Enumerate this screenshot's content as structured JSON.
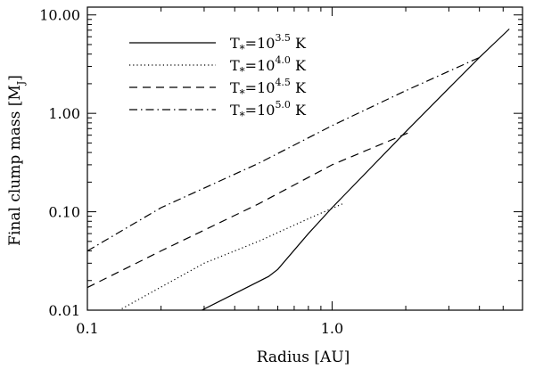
{
  "chart_data": {
    "type": "line",
    "title": "",
    "xlabel": "Radius [AU]",
    "ylabel": "Final clump mass [M",
    "ylabel_sub": "J",
    "ylabel_end": "]",
    "xscale": "log",
    "yscale": "log",
    "xlim": [
      0.1,
      6.0
    ],
    "ylim": [
      0.01,
      12.0
    ],
    "xticks": [
      0.1,
      1.0
    ],
    "xtick_labels": [
      "0.1",
      "1.0"
    ],
    "yticks": [
      0.01,
      0.1,
      1.0,
      10.0
    ],
    "ytick_labels": [
      "0.01",
      "0.10",
      "1.00",
      "10.00"
    ],
    "grid": false,
    "legend_position": "top-left",
    "series": [
      {
        "label_main": "T",
        "label_sub": "*",
        "label_eq": "=10",
        "label_exp": "3.5",
        "label_unit": " K",
        "style": "solid",
        "x": [
          0.27,
          0.55,
          0.6,
          0.8,
          1.0,
          2.0,
          3.0,
          4.0,
          5.3
        ],
        "y": [
          0.009,
          0.022,
          0.026,
          0.06,
          0.11,
          0.65,
          1.8,
          3.7,
          7.2
        ]
      },
      {
        "label_main": "T",
        "label_sub": "*",
        "label_eq": "=10",
        "label_exp": "4.0",
        "label_unit": " K",
        "style": "dotted",
        "x": [
          0.13,
          0.3,
          0.5,
          0.8,
          1.1
        ],
        "y": [
          0.0095,
          0.03,
          0.05,
          0.085,
          0.12
        ]
      },
      {
        "label_main": "T",
        "label_sub": "*",
        "label_eq": "=10",
        "label_exp": "4.5",
        "label_unit": " K",
        "style": "dashed",
        "x": [
          0.1,
          0.2,
          0.5,
          1.0,
          2.1
        ],
        "y": [
          0.017,
          0.04,
          0.12,
          0.3,
          0.65
        ]
      },
      {
        "label_main": "T",
        "label_sub": "*",
        "label_eq": "=10",
        "label_exp": "5.0",
        "label_unit": " K",
        "style": "dashdot",
        "x": [
          0.1,
          0.2,
          0.5,
          1.0,
          2.0,
          4.1
        ],
        "y": [
          0.04,
          0.11,
          0.31,
          0.75,
          1.7,
          3.8
        ]
      }
    ]
  }
}
